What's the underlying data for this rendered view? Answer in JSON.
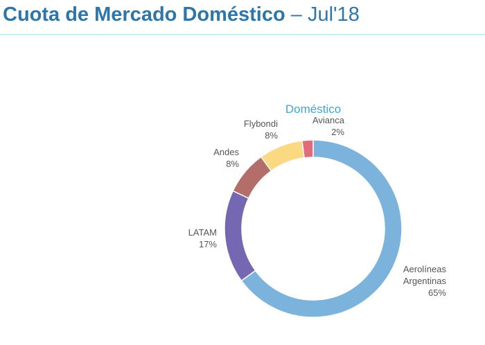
{
  "header": {
    "title": "Cuota de Mercado Doméstico",
    "separator": "–",
    "period": "Jul'18"
  },
  "chart_data": {
    "type": "pie",
    "title": "Doméstico",
    "categories": [
      "Aerolíneas Argentinas",
      "LATAM",
      "Andes",
      "Flybondi",
      "Avianca"
    ],
    "values": [
      65,
      17,
      8,
      8,
      2
    ],
    "value_labels": [
      "65%",
      "17%",
      "8%",
      "8%",
      "2%"
    ],
    "label_lines": [
      [
        "Aerolíneas",
        "Argentinas"
      ],
      [
        "LATAM"
      ],
      [
        "Andes"
      ],
      [
        "Flybondi"
      ],
      [
        "Avianca"
      ]
    ],
    "colors": [
      "#7bb3dc",
      "#7667b3",
      "#b46e6a",
      "#fbd882",
      "#e06b7a"
    ],
    "title_color": "#3ea6d8",
    "label_color": "#555555"
  }
}
